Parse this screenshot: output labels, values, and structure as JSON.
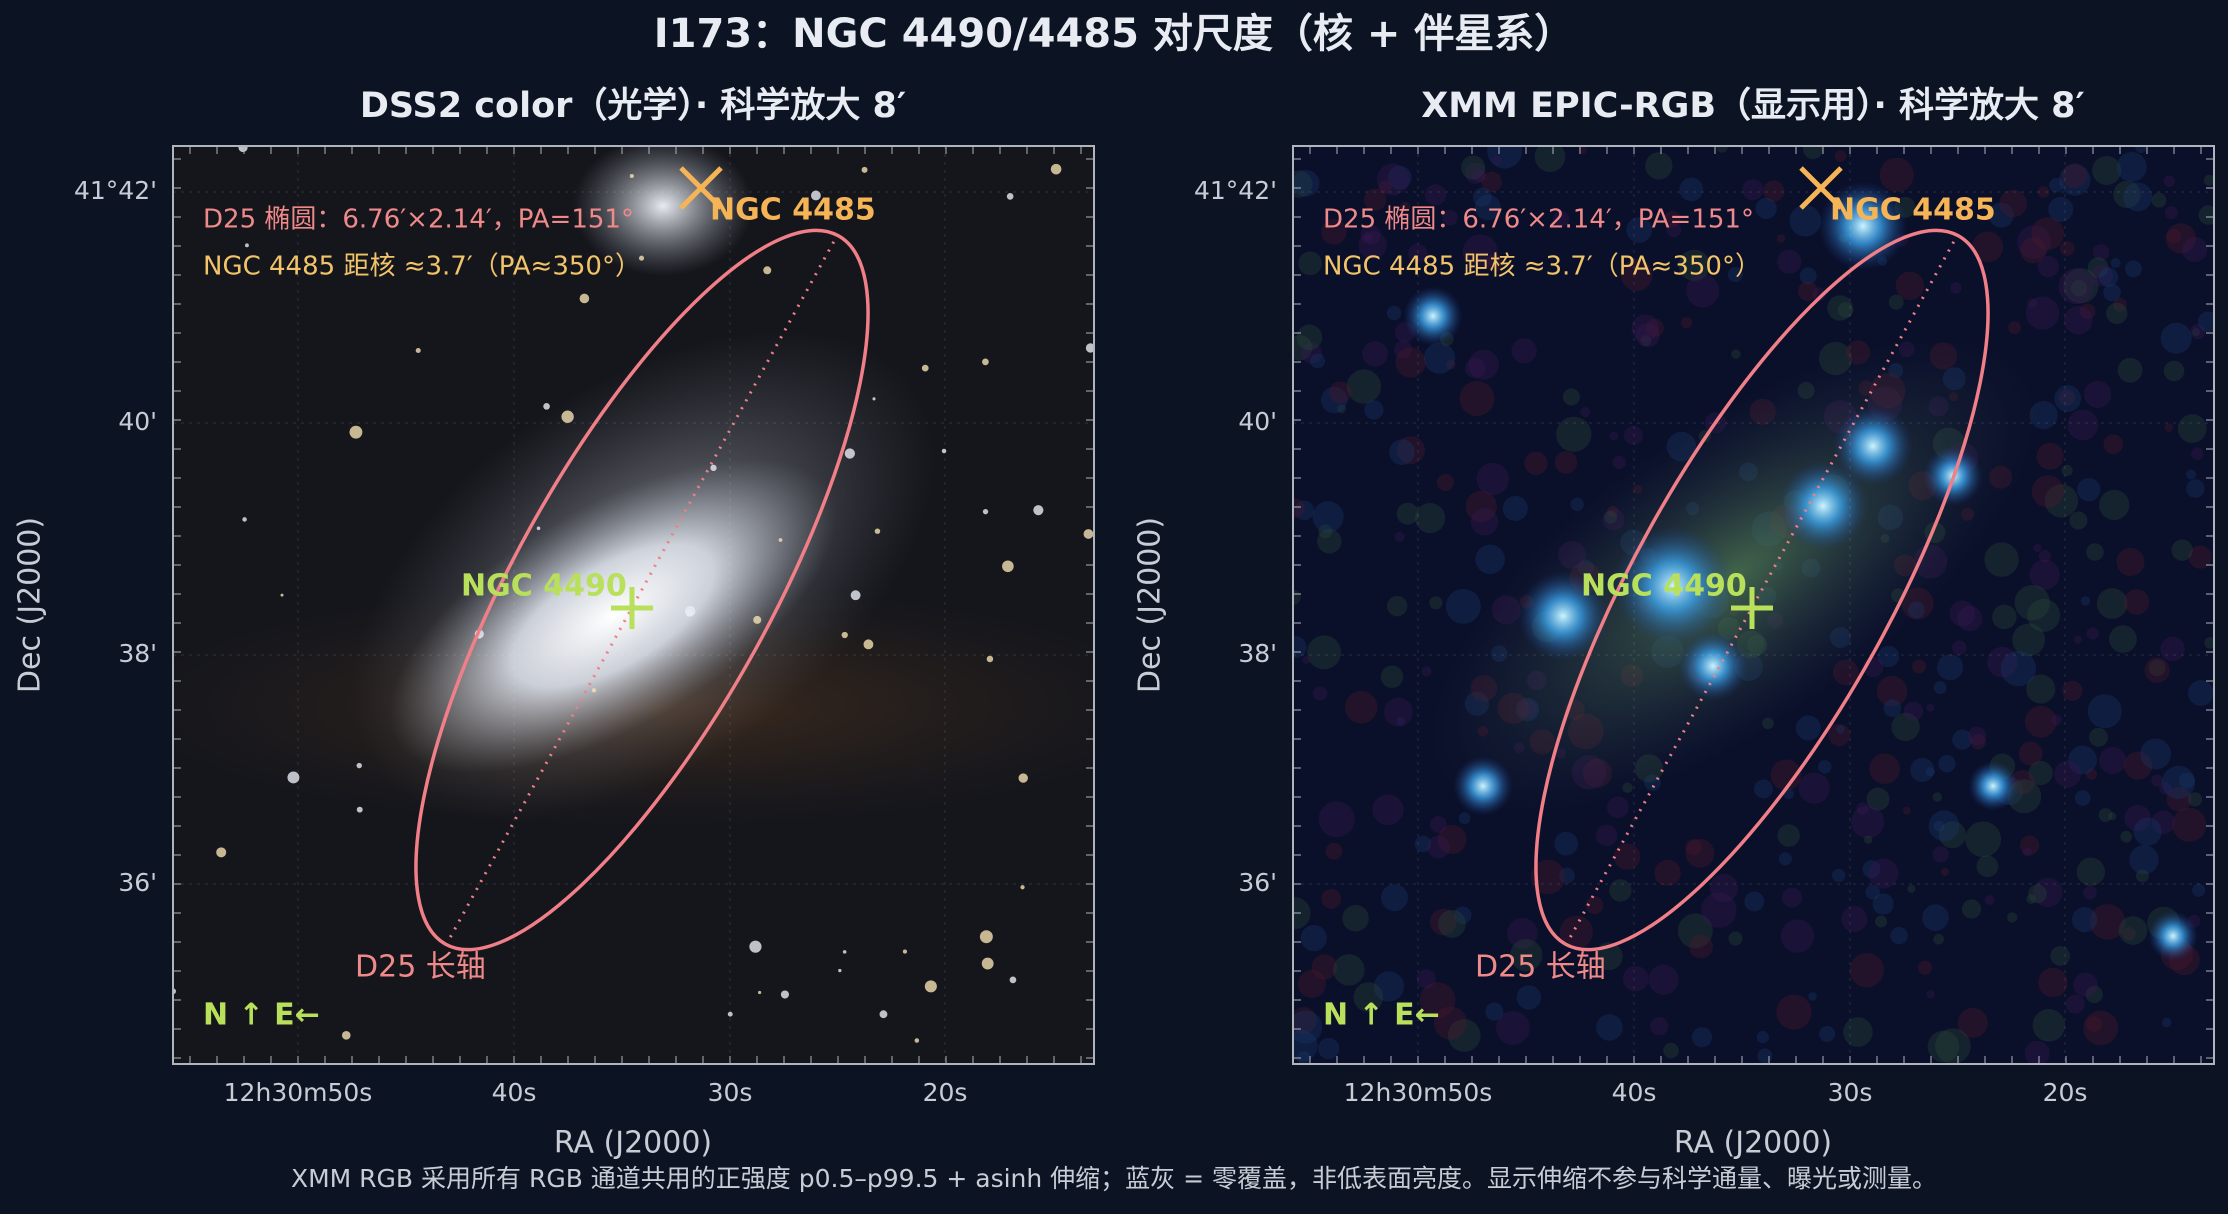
{
  "title": "I173：NGC 4490/4485 对尺度（核 + 伴星系）",
  "panels": [
    {
      "title": "DSS2 color（光学）· 科学放大 8′",
      "y_label": "Dec (J2000)",
      "x_label": "RA (J2000)",
      "yticks": [
        "41°42'",
        "40'",
        "38'",
        "36'"
      ],
      "xticks": [
        "12h30m50s",
        "40s",
        "30s",
        "20s"
      ],
      "ellipse_note": "D25 椭圆：6.76′×2.14′，PA=151°",
      "companion_note": "NGC 4485 距核 ≈3.7′（PA≈350°）",
      "companion_label": "NGC 4485",
      "core_label": "NGC 4490",
      "axis_label": "D25 长轴",
      "compass": "N ↑   E←"
    },
    {
      "title": "XMM EPIC-RGB（显示用）· 科学放大 8′",
      "y_label": "Dec (J2000)",
      "x_label": "RA (J2000)",
      "yticks": [
        "41°42'",
        "40'",
        "38'",
        "36'"
      ],
      "xticks": [
        "12h30m50s",
        "40s",
        "30s",
        "20s"
      ],
      "ellipse_note": "D25 椭圆：6.76′×2.14′，PA=151°",
      "companion_note": "NGC 4485 距核 ≈3.7′（PA≈350°）",
      "companion_label": "NGC 4485",
      "core_label": "NGC 4490",
      "axis_label": "D25 长轴",
      "compass": "N ↑   E←"
    }
  ],
  "footnote": "XMM RGB 采用所有 RGB 通道共用的正强度 p0.5–p99.5 + asinh 伸缩；蓝灰 = 零覆盖，非低表面亮度。显示伸缩不参与科学通量、曝光或测量。"
}
